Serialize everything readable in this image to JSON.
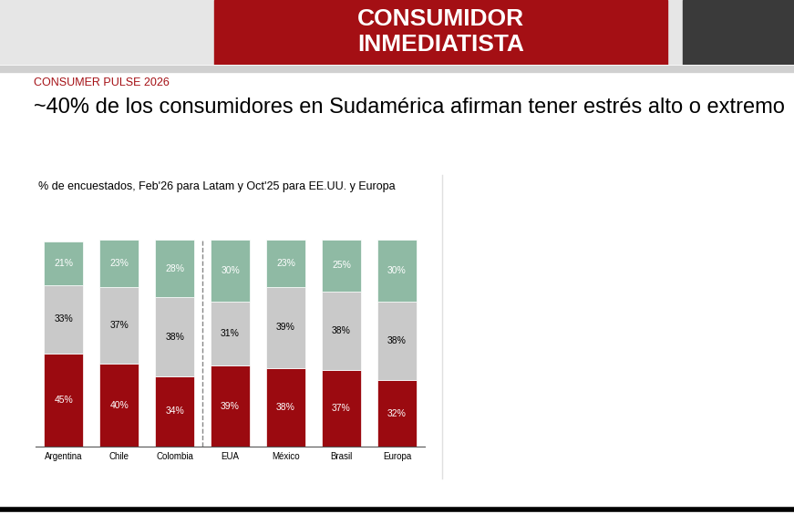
{
  "header": {
    "banner": "CONSUMIDOR INMEDIATISTA",
    "label": "CONSUMER PULSE 2026"
  },
  "chart_data": {
    "type": "bar",
    "stacked": true,
    "data_labels": true,
    "grid": false,
    "tick_labels": "x",
    "title": "~40% de los consumidores en Sudamérica afirman tener estrés alto o extremo",
    "subtitle": "% de encuestados, Feb'26 para Latam y Oct'25 para EE.UU. y Europa",
    "categories": [
      "Argentina",
      "Chile",
      "Colombia",
      "EUA",
      "México",
      "Brasil",
      "Europa"
    ],
    "ylim": [
      0,
      100
    ],
    "series": [
      {
        "color": "#9b0a10",
        "values": [
          45,
          40,
          34,
          39,
          38,
          37,
          32
        ],
        "value_labels": [
          "45%",
          "40%",
          "34%",
          "39%",
          "38%",
          "37%",
          "32%"
        ]
      },
      {
        "color": "#c9c9c9",
        "values": [
          33,
          37,
          38,
          31,
          39,
          38,
          38
        ],
        "value_labels": [
          "33%",
          "37%",
          "38%",
          "31%",
          "39%",
          "38%",
          "38%"
        ]
      },
      {
        "color": "#8fbaa4",
        "values": [
          21,
          23,
          28,
          30,
          23,
          25,
          30
        ],
        "value_labels": [
          "21%",
          "23%",
          "28%",
          "30%",
          "23%",
          "25%",
          "30%"
        ]
      }
    ]
  }
}
